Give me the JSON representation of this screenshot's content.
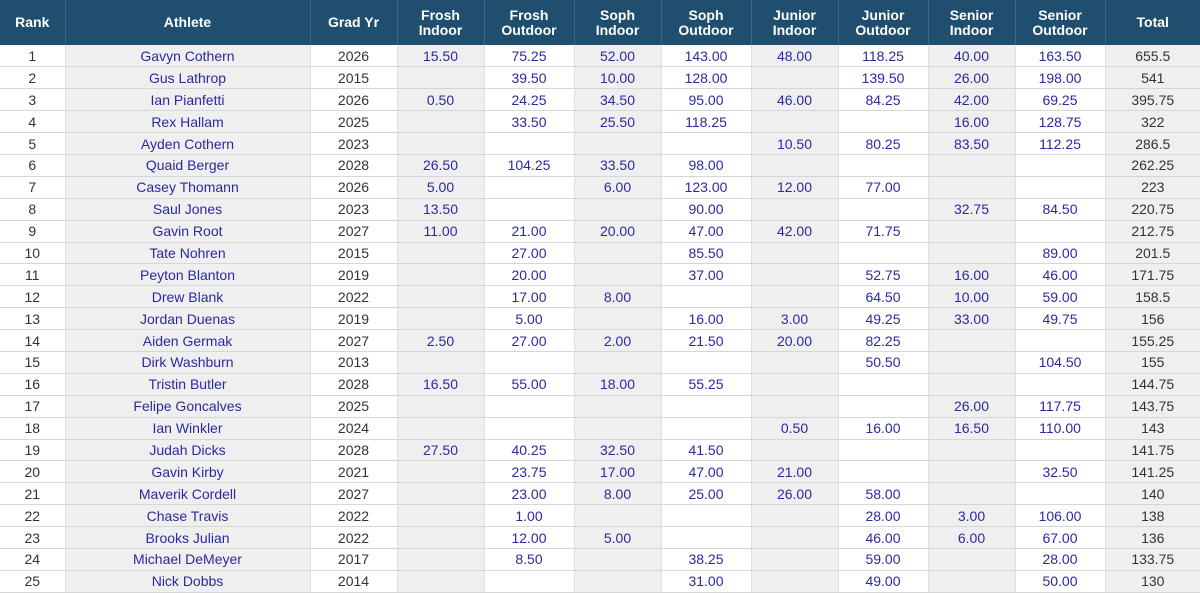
{
  "columns": {
    "rank": "Rank",
    "athlete": "Athlete",
    "grad_yr": "Grad Yr",
    "frosh_indoor": [
      "Frosh",
      "Indoor"
    ],
    "frosh_outdoor": [
      "Frosh",
      "Outdoor"
    ],
    "soph_indoor": [
      "Soph",
      "Indoor"
    ],
    "soph_outdoor": [
      "Soph",
      "Outdoor"
    ],
    "junior_indoor": [
      "Junior",
      "Indoor"
    ],
    "junior_outdoor": [
      "Junior",
      "Outdoor"
    ],
    "senior_indoor": [
      "Senior",
      "Indoor"
    ],
    "senior_outdoor": [
      "Senior",
      "Outdoor"
    ],
    "total": "Total"
  },
  "rows": [
    {
      "rank": "1",
      "athlete": "Gavyn Cothern",
      "grad_yr": "2026",
      "frosh_indoor": "15.50",
      "frosh_outdoor": "75.25",
      "soph_indoor": "52.00",
      "soph_outdoor": "143.00",
      "junior_indoor": "48.00",
      "junior_outdoor": "118.25",
      "senior_indoor": "40.00",
      "senior_outdoor": "163.50",
      "total": "655.5"
    },
    {
      "rank": "2",
      "athlete": "Gus Lathrop",
      "grad_yr": "2015",
      "frosh_indoor": "",
      "frosh_outdoor": "39.50",
      "soph_indoor": "10.00",
      "soph_outdoor": "128.00",
      "junior_indoor": "",
      "junior_outdoor": "139.50",
      "senior_indoor": "26.00",
      "senior_outdoor": "198.00",
      "total": "541"
    },
    {
      "rank": "3",
      "athlete": "Ian Pianfetti",
      "grad_yr": "2026",
      "frosh_indoor": "0.50",
      "frosh_outdoor": "24.25",
      "soph_indoor": "34.50",
      "soph_outdoor": "95.00",
      "junior_indoor": "46.00",
      "junior_outdoor": "84.25",
      "senior_indoor": "42.00",
      "senior_outdoor": "69.25",
      "total": "395.75"
    },
    {
      "rank": "4",
      "athlete": "Rex Hallam",
      "grad_yr": "2025",
      "frosh_indoor": "",
      "frosh_outdoor": "33.50",
      "soph_indoor": "25.50",
      "soph_outdoor": "118.25",
      "junior_indoor": "",
      "junior_outdoor": "",
      "senior_indoor": "16.00",
      "senior_outdoor": "128.75",
      "total": "322"
    },
    {
      "rank": "5",
      "athlete": "Ayden Cothern",
      "grad_yr": "2023",
      "frosh_indoor": "",
      "frosh_outdoor": "",
      "soph_indoor": "",
      "soph_outdoor": "",
      "junior_indoor": "10.50",
      "junior_outdoor": "80.25",
      "senior_indoor": "83.50",
      "senior_outdoor": "112.25",
      "total": "286.5"
    },
    {
      "rank": "6",
      "athlete": "Quaid Berger",
      "grad_yr": "2028",
      "frosh_indoor": "26.50",
      "frosh_outdoor": "104.25",
      "soph_indoor": "33.50",
      "soph_outdoor": "98.00",
      "junior_indoor": "",
      "junior_outdoor": "",
      "senior_indoor": "",
      "senior_outdoor": "",
      "total": "262.25"
    },
    {
      "rank": "7",
      "athlete": "Casey Thomann",
      "grad_yr": "2026",
      "frosh_indoor": "5.00",
      "frosh_outdoor": "",
      "soph_indoor": "6.00",
      "soph_outdoor": "123.00",
      "junior_indoor": "12.00",
      "junior_outdoor": "77.00",
      "senior_indoor": "",
      "senior_outdoor": "",
      "total": "223"
    },
    {
      "rank": "8",
      "athlete": "Saul Jones",
      "grad_yr": "2023",
      "frosh_indoor": "13.50",
      "frosh_outdoor": "",
      "soph_indoor": "",
      "soph_outdoor": "90.00",
      "junior_indoor": "",
      "junior_outdoor": "",
      "senior_indoor": "32.75",
      "senior_outdoor": "84.50",
      "total": "220.75"
    },
    {
      "rank": "9",
      "athlete": "Gavin Root",
      "grad_yr": "2027",
      "frosh_indoor": "11.00",
      "frosh_outdoor": "21.00",
      "soph_indoor": "20.00",
      "soph_outdoor": "47.00",
      "junior_indoor": "42.00",
      "junior_outdoor": "71.75",
      "senior_indoor": "",
      "senior_outdoor": "",
      "total": "212.75"
    },
    {
      "rank": "10",
      "athlete": "Tate Nohren",
      "grad_yr": "2015",
      "frosh_indoor": "",
      "frosh_outdoor": "27.00",
      "soph_indoor": "",
      "soph_outdoor": "85.50",
      "junior_indoor": "",
      "junior_outdoor": "",
      "senior_indoor": "",
      "senior_outdoor": "89.00",
      "total": "201.5"
    },
    {
      "rank": "11",
      "athlete": "Peyton Blanton",
      "grad_yr": "2019",
      "frosh_indoor": "",
      "frosh_outdoor": "20.00",
      "soph_indoor": "",
      "soph_outdoor": "37.00",
      "junior_indoor": "",
      "junior_outdoor": "52.75",
      "senior_indoor": "16.00",
      "senior_outdoor": "46.00",
      "total": "171.75"
    },
    {
      "rank": "12",
      "athlete": "Drew Blank",
      "grad_yr": "2022",
      "frosh_indoor": "",
      "frosh_outdoor": "17.00",
      "soph_indoor": "8.00",
      "soph_outdoor": "",
      "junior_indoor": "",
      "junior_outdoor": "64.50",
      "senior_indoor": "10.00",
      "senior_outdoor": "59.00",
      "total": "158.5"
    },
    {
      "rank": "13",
      "athlete": "Jordan Duenas",
      "grad_yr": "2019",
      "frosh_indoor": "",
      "frosh_outdoor": "5.00",
      "soph_indoor": "",
      "soph_outdoor": "16.00",
      "junior_indoor": "3.00",
      "junior_outdoor": "49.25",
      "senior_indoor": "33.00",
      "senior_outdoor": "49.75",
      "total": "156"
    },
    {
      "rank": "14",
      "athlete": "Aiden Germak",
      "grad_yr": "2027",
      "frosh_indoor": "2.50",
      "frosh_outdoor": "27.00",
      "soph_indoor": "2.00",
      "soph_outdoor": "21.50",
      "junior_indoor": "20.00",
      "junior_outdoor": "82.25",
      "senior_indoor": "",
      "senior_outdoor": "",
      "total": "155.25"
    },
    {
      "rank": "15",
      "athlete": "Dirk Washburn",
      "grad_yr": "2013",
      "frosh_indoor": "",
      "frosh_outdoor": "",
      "soph_indoor": "",
      "soph_outdoor": "",
      "junior_indoor": "",
      "junior_outdoor": "50.50",
      "senior_indoor": "",
      "senior_outdoor": "104.50",
      "total": "155"
    },
    {
      "rank": "16",
      "athlete": "Tristin Butler",
      "grad_yr": "2028",
      "frosh_indoor": "16.50",
      "frosh_outdoor": "55.00",
      "soph_indoor": "18.00",
      "soph_outdoor": "55.25",
      "junior_indoor": "",
      "junior_outdoor": "",
      "senior_indoor": "",
      "senior_outdoor": "",
      "total": "144.75"
    },
    {
      "rank": "17",
      "athlete": "Felipe Goncalves",
      "grad_yr": "2025",
      "frosh_indoor": "",
      "frosh_outdoor": "",
      "soph_indoor": "",
      "soph_outdoor": "",
      "junior_indoor": "",
      "junior_outdoor": "",
      "senior_indoor": "26.00",
      "senior_outdoor": "117.75",
      "total": "143.75"
    },
    {
      "rank": "18",
      "athlete": "Ian Winkler",
      "grad_yr": "2024",
      "frosh_indoor": "",
      "frosh_outdoor": "",
      "soph_indoor": "",
      "soph_outdoor": "",
      "junior_indoor": "0.50",
      "junior_outdoor": "16.00",
      "senior_indoor": "16.50",
      "senior_outdoor": "110.00",
      "total": "143"
    },
    {
      "rank": "19",
      "athlete": "Judah Dicks",
      "grad_yr": "2028",
      "frosh_indoor": "27.50",
      "frosh_outdoor": "40.25",
      "soph_indoor": "32.50",
      "soph_outdoor": "41.50",
      "junior_indoor": "",
      "junior_outdoor": "",
      "senior_indoor": "",
      "senior_outdoor": "",
      "total": "141.75"
    },
    {
      "rank": "20",
      "athlete": "Gavin Kirby",
      "grad_yr": "2021",
      "frosh_indoor": "",
      "frosh_outdoor": "23.75",
      "soph_indoor": "17.00",
      "soph_outdoor": "47.00",
      "junior_indoor": "21.00",
      "junior_outdoor": "",
      "senior_indoor": "",
      "senior_outdoor": "32.50",
      "total": "141.25"
    },
    {
      "rank": "21",
      "athlete": "Maverik Cordell",
      "grad_yr": "2027",
      "frosh_indoor": "",
      "frosh_outdoor": "23.00",
      "soph_indoor": "8.00",
      "soph_outdoor": "25.00",
      "junior_indoor": "26.00",
      "junior_outdoor": "58.00",
      "senior_indoor": "",
      "senior_outdoor": "",
      "total": "140"
    },
    {
      "rank": "22",
      "athlete": "Chase Travis",
      "grad_yr": "2022",
      "frosh_indoor": "",
      "frosh_outdoor": "1.00",
      "soph_indoor": "",
      "soph_outdoor": "",
      "junior_indoor": "",
      "junior_outdoor": "28.00",
      "senior_indoor": "3.00",
      "senior_outdoor": "106.00",
      "total": "138"
    },
    {
      "rank": "23",
      "athlete": "Brooks Julian",
      "grad_yr": "2022",
      "frosh_indoor": "",
      "frosh_outdoor": "12.00",
      "soph_indoor": "5.00",
      "soph_outdoor": "",
      "junior_indoor": "",
      "junior_outdoor": "46.00",
      "senior_indoor": "6.00",
      "senior_outdoor": "67.00",
      "total": "136"
    },
    {
      "rank": "24",
      "athlete": "Michael DeMeyer",
      "grad_yr": "2017",
      "frosh_indoor": "",
      "frosh_outdoor": "8.50",
      "soph_indoor": "",
      "soph_outdoor": "38.25",
      "junior_indoor": "",
      "junior_outdoor": "59.00",
      "senior_indoor": "",
      "senior_outdoor": "28.00",
      "total": "133.75"
    },
    {
      "rank": "25",
      "athlete": "Nick Dobbs",
      "grad_yr": "2014",
      "frosh_indoor": "",
      "frosh_outdoor": "",
      "soph_indoor": "",
      "soph_outdoor": "31.00",
      "junior_indoor": "",
      "junior_outdoor": "49.00",
      "senior_indoor": "",
      "senior_outdoor": "50.00",
      "total": "130"
    }
  ],
  "colors": {
    "header_bg": "#1f4e6e",
    "header_text": "#ffffff",
    "link_text": "#2a2aa0",
    "plain_text": "#333333",
    "shaded_cell": "#efefef"
  }
}
